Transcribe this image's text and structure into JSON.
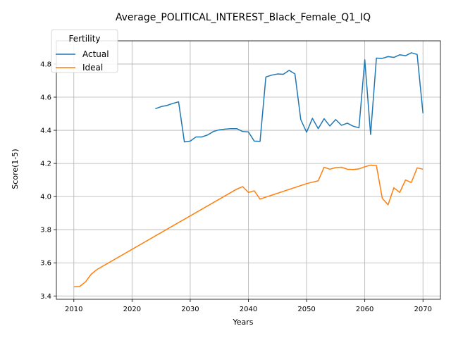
{
  "chart_data": {
    "type": "line",
    "title": "Average_POLITICAL_INTEREST_Black_Female_Q1_IQ",
    "xlabel": "Years",
    "ylabel": "Score(1-5)",
    "xlim": [
      2007,
      2073
    ],
    "ylim": [
      3.38,
      4.94
    ],
    "xticks": [
      2010,
      2020,
      2030,
      2040,
      2050,
      2060,
      2070
    ],
    "xtick_labels": [
      "2010",
      "2020",
      "2030",
      "2040",
      "2050",
      "2060",
      "2070"
    ],
    "yticks": [
      3.4,
      3.6,
      3.8,
      4.0,
      4.2,
      4.4,
      4.6,
      4.8
    ],
    "ytick_labels": [
      "3.4",
      "3.6",
      "3.8",
      "4.0",
      "4.2",
      "4.4",
      "4.6",
      "4.8"
    ],
    "grid": true,
    "legend": {
      "title": "Fertility",
      "placement": "top-left"
    },
    "series": [
      {
        "name": "Actual",
        "color": "#1f77b4",
        "points": [
          [
            2024,
            4.53
          ],
          [
            2025,
            4.543
          ],
          [
            2026,
            4.55
          ],
          [
            2027,
            4.562
          ],
          [
            2028,
            4.572
          ],
          [
            2029,
            4.33
          ],
          [
            2030,
            4.335
          ],
          [
            2031,
            4.36
          ],
          [
            2032,
            4.36
          ],
          [
            2033,
            4.372
          ],
          [
            2034,
            4.393
          ],
          [
            2035,
            4.403
          ],
          [
            2036,
            4.407
          ],
          [
            2037,
            4.41
          ],
          [
            2038,
            4.41
          ],
          [
            2039,
            4.393
          ],
          [
            2040,
            4.39
          ],
          [
            2041,
            4.335
          ],
          [
            2042,
            4.333
          ],
          [
            2043,
            4.722
          ],
          [
            2044,
            4.733
          ],
          [
            2045,
            4.74
          ],
          [
            2046,
            4.738
          ],
          [
            2047,
            4.762
          ],
          [
            2048,
            4.74
          ],
          [
            2049,
            4.465
          ],
          [
            2050,
            4.388
          ],
          [
            2051,
            4.472
          ],
          [
            2052,
            4.41
          ],
          [
            2053,
            4.47
          ],
          [
            2054,
            4.426
          ],
          [
            2055,
            4.465
          ],
          [
            2056,
            4.43
          ],
          [
            2057,
            4.443
          ],
          [
            2058,
            4.425
          ],
          [
            2059,
            4.415
          ],
          [
            2060,
            4.826
          ],
          [
            2061,
            4.375
          ],
          [
            2062,
            4.836
          ],
          [
            2063,
            4.834
          ],
          [
            2064,
            4.845
          ],
          [
            2065,
            4.84
          ],
          [
            2066,
            4.856
          ],
          [
            2067,
            4.85
          ],
          [
            2068,
            4.868
          ],
          [
            2069,
            4.858
          ],
          [
            2070,
            4.503
          ]
        ]
      },
      {
        "name": "Ideal",
        "color": "#ff7f0e",
        "points": [
          [
            2010,
            3.455
          ],
          [
            2011,
            3.457
          ],
          [
            2012,
            3.485
          ],
          [
            2013,
            3.532
          ],
          [
            2014,
            3.56
          ],
          [
            2038,
            4.045
          ],
          [
            2039,
            4.06
          ],
          [
            2040,
            4.025
          ],
          [
            2041,
            4.035
          ],
          [
            2042,
            3.985
          ],
          [
            2050,
            4.078
          ],
          [
            2051,
            4.087
          ],
          [
            2052,
            4.095
          ],
          [
            2053,
            4.177
          ],
          [
            2054,
            4.165
          ],
          [
            2055,
            4.175
          ],
          [
            2056,
            4.177
          ],
          [
            2057,
            4.165
          ],
          [
            2058,
            4.163
          ],
          [
            2059,
            4.167
          ],
          [
            2060,
            4.18
          ],
          [
            2061,
            4.19
          ],
          [
            2062,
            4.187
          ],
          [
            2063,
            3.99
          ],
          [
            2064,
            3.95
          ],
          [
            2065,
            4.053
          ],
          [
            2066,
            4.025
          ],
          [
            2067,
            4.1
          ],
          [
            2068,
            4.085
          ],
          [
            2069,
            4.173
          ],
          [
            2070,
            4.165
          ]
        ]
      }
    ]
  }
}
